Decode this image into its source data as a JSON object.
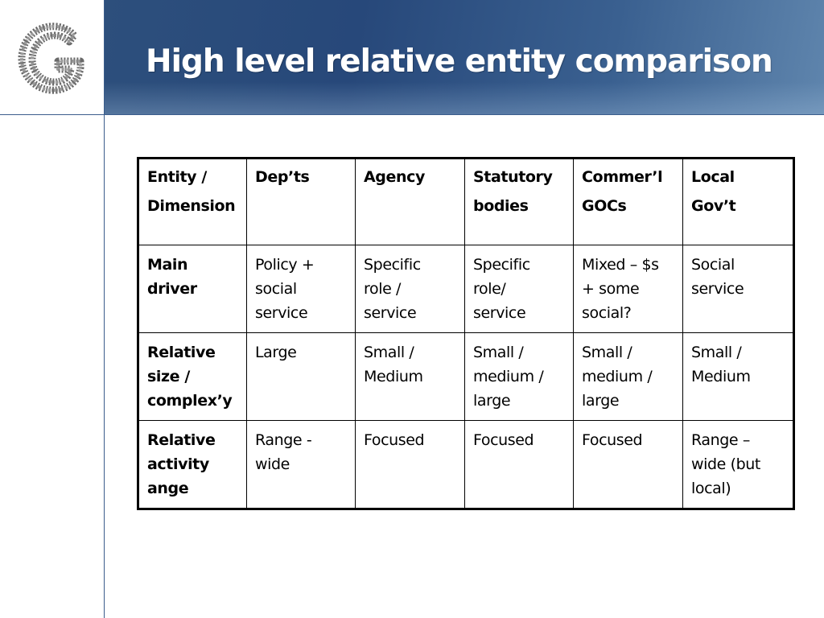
{
  "slide": {
    "title": "High level relative entity comparison"
  },
  "logo": {
    "icon": "stylized-g-logo-icon"
  },
  "table": {
    "header": [
      [
        "Entity   /",
        "Dimension"
      ],
      [
        "Dep’ts"
      ],
      [
        "Agency"
      ],
      [
        "Statutory",
        "bodies"
      ],
      [
        "Commer’l",
        "GOCs"
      ],
      [
        "Local",
        "Gov’t"
      ]
    ],
    "rows": [
      {
        "label": [
          "Main",
          "driver"
        ],
        "cells": [
          [
            "Policy +",
            "social",
            "service"
          ],
          [
            "Specific",
            "role /",
            "service"
          ],
          [
            "Specific",
            "role/",
            "service"
          ],
          [
            "Mixed – $s",
            "+ some",
            "social?"
          ],
          [
            "Social",
            "service"
          ]
        ]
      },
      {
        "label": [
          "Relative",
          "size /",
          "complex’y"
        ],
        "cells": [
          [
            "Large"
          ],
          [
            "Small  /",
            "Medium"
          ],
          [
            "Small /",
            "medium /",
            "large"
          ],
          [
            "Small /",
            "medium /",
            "large"
          ],
          [
            "Small  /",
            "Medium"
          ]
        ]
      },
      {
        "label": [
          "Relative",
          "activity",
          "ange"
        ],
        "cells": [
          [
            "Range -",
            "wide"
          ],
          [
            "Focused"
          ],
          [
            "Focused"
          ],
          [
            "Focused"
          ],
          [
            "Range –",
            "wide (but",
            "local)"
          ]
        ]
      }
    ]
  }
}
